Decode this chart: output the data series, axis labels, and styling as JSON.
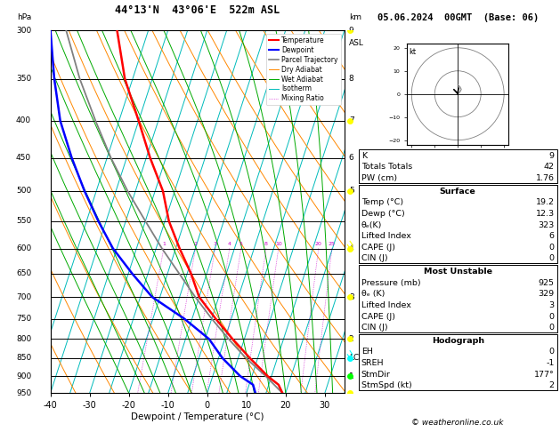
{
  "title_left": "44°13'N  43°06'E  522m ASL",
  "title_right": "05.06.2024  00GMT  (Base: 06)",
  "xlabel": "Dewpoint / Temperature (°C)",
  "pressure_levels": [
    300,
    350,
    400,
    450,
    500,
    550,
    600,
    650,
    700,
    750,
    800,
    850,
    900,
    950
  ],
  "km_data": {
    "300": "9",
    "350": "8",
    "400": "7",
    "450": "6",
    "500": "5",
    "600": "4",
    "700": "3",
    "800": "2",
    "850": "LCL",
    "900": "1"
  },
  "temp_line": {
    "pressures": [
      950,
      925,
      900,
      850,
      800,
      750,
      700,
      650,
      600,
      550,
      500,
      450,
      400,
      350,
      300
    ],
    "temps": [
      19.2,
      17.5,
      14.0,
      8.0,
      2.0,
      -4.0,
      -10.0,
      -14.0,
      -19.0,
      -24.0,
      -28.0,
      -34.0,
      -40.0,
      -47.0,
      -53.0
    ]
  },
  "dewp_line": {
    "pressures": [
      950,
      925,
      900,
      850,
      800,
      750,
      700,
      650,
      600,
      550,
      500,
      450,
      400,
      350,
      300
    ],
    "temps": [
      12.3,
      11.0,
      7.0,
      1.0,
      -4.0,
      -12.0,
      -22.0,
      -29.0,
      -36.0,
      -42.0,
      -48.0,
      -54.0,
      -60.0,
      -65.0,
      -70.0
    ]
  },
  "parcel_line": {
    "pressures": [
      950,
      900,
      850,
      800,
      750,
      700,
      650,
      600,
      550,
      500,
      450,
      400,
      350,
      300
    ],
    "temps": [
      19.2,
      13.5,
      7.0,
      1.0,
      -5.0,
      -11.0,
      -17.0,
      -23.5,
      -30.0,
      -37.0,
      -44.0,
      -51.0,
      -58.5,
      -66.0
    ]
  },
  "lcl_pressure": 857,
  "temp_color": "#ff0000",
  "dewp_color": "#0000ff",
  "parcel_color": "#808080",
  "dryadiabat_color": "#ff8800",
  "wetadiabat_color": "#00aa00",
  "isotherm_color": "#00aaaa",
  "mixingratio_color": "#ff00ff",
  "mixing_ratios": [
    1,
    2,
    3,
    4,
    5,
    8,
    10,
    20,
    25
  ],
  "table_K": "9",
  "table_TT": "42",
  "table_PW": "1.76",
  "sfc_temp": "19.2",
  "sfc_dewp": "12.3",
  "sfc_thetae": "323",
  "sfc_li": "6",
  "sfc_cape": "0",
  "sfc_cin": "0",
  "mu_press": "925",
  "mu_thetae": "329",
  "mu_li": "3",
  "mu_cape": "0",
  "mu_cin": "0",
  "hodo_EH": "0",
  "hodo_SREH": "-1",
  "hodo_StmDir": "177°",
  "hodo_StmSpd": "2",
  "wind_colors_left": [
    "#ffff00",
    "#ffff00",
    "#ffff00",
    "#ffff00",
    "#ffff00",
    "#ffff00",
    "#00ffff",
    "#00ff00",
    "#ffff00"
  ],
  "wind_pressures_left": [
    300,
    400,
    500,
    600,
    700,
    800,
    850,
    900,
    950
  ]
}
